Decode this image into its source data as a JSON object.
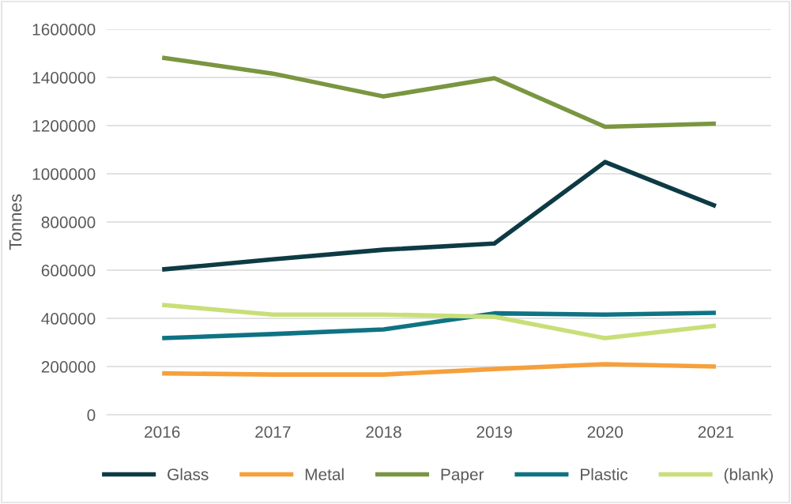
{
  "chart_data": {
    "type": "line",
    "ylabel": "Tonnes",
    "categories": [
      "2016",
      "2017",
      "2018",
      "2019",
      "2020",
      "2021"
    ],
    "series": [
      {
        "name": "Glass",
        "color": "#0d3b44",
        "values": [
          603000,
          645000,
          685000,
          711000,
          1049000,
          866000
        ]
      },
      {
        "name": "Metal",
        "color": "#f6a03c",
        "values": [
          172000,
          167000,
          167000,
          190000,
          210000,
          200000
        ]
      },
      {
        "name": "Paper",
        "color": "#7a9641",
        "values": [
          1482000,
          1416000,
          1321000,
          1397000,
          1195000,
          1208000
        ]
      },
      {
        "name": "Plastic",
        "color": "#0f7384",
        "values": [
          318000,
          335000,
          354000,
          421000,
          416000,
          423000
        ]
      },
      {
        "name": "(blank)",
        "color": "#c8df79",
        "values": [
          456000,
          416000,
          416000,
          407000,
          318000,
          370000
        ]
      }
    ],
    "ylim": [
      0,
      1600000
    ],
    "yticks": [
      0,
      200000,
      400000,
      600000,
      800000,
      1000000,
      1200000,
      1400000,
      1600000
    ],
    "grid": "y",
    "legend": "bottom",
    "marker": "none",
    "line_style": "solid"
  }
}
